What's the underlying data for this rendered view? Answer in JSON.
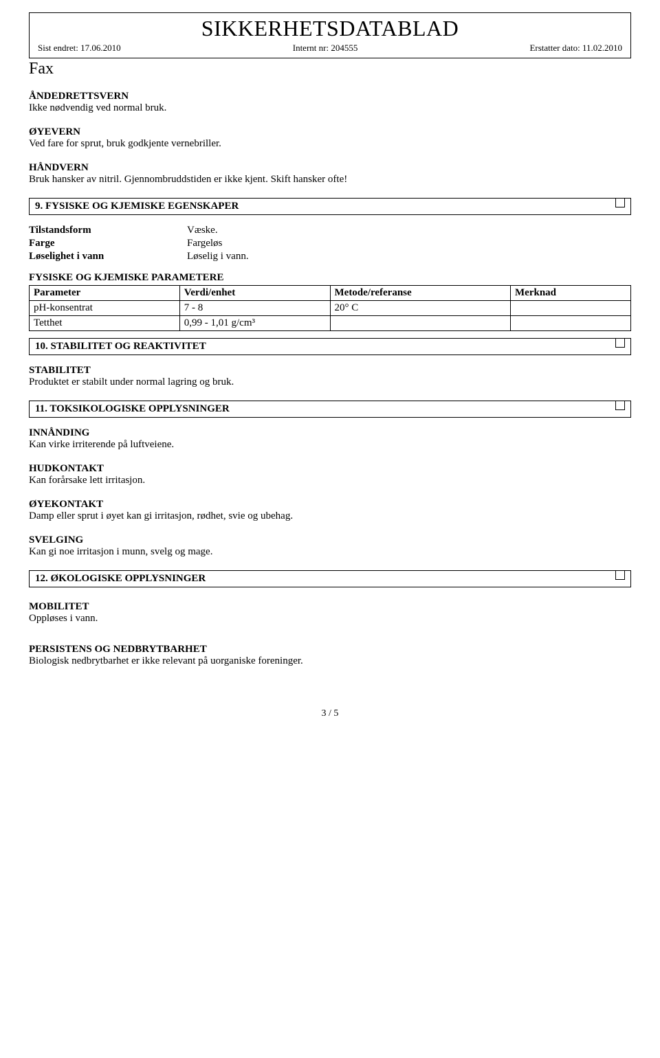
{
  "header": {
    "title": "SIKKERHETSDATABLAD",
    "left": "Sist endret: 17.06.2010",
    "center": "Internt nr: 204555",
    "right": "Erstatter dato: 11.02.2010"
  },
  "fax": "Fax",
  "blocks_top": [
    {
      "title": "ÅNDEDRETTSVERN",
      "text": "Ikke nødvendig ved normal bruk."
    },
    {
      "title": "ØYEVERN",
      "text": "Ved fare for sprut, bruk godkjente vernebriller."
    },
    {
      "title": "HÅNDVERN",
      "text": "Bruk hansker av nitril. Gjennombruddstiden er ikke kjent. Skift hansker ofte!"
    }
  ],
  "section9": {
    "heading": "9. FYSISKE OG KJEMISKE EGENSKAPER",
    "props": [
      {
        "k": "Tilstandsform",
        "v": "Væske."
      },
      {
        "k": "Farge",
        "v": "Fargeløs"
      },
      {
        "k": "Løselighet i vann",
        "v": "Løselig i vann."
      }
    ],
    "params_title": "FYSISKE OG KJEMISKE PARAMETERE",
    "columns": [
      "Parameter",
      "Verdi/enhet",
      "Metode/referanse",
      "Merknad"
    ],
    "rows": [
      [
        "pH-konsentrat",
        "7 - 8",
        "20° C",
        ""
      ],
      [
        "Tetthet",
        "0,99 - 1,01 g/cm³",
        "",
        ""
      ]
    ],
    "col_widths": [
      "25%",
      "25%",
      "30%",
      "20%"
    ]
  },
  "section10": {
    "heading": "10. STABILITET OG REAKTIVITET",
    "blocks": [
      {
        "title": "STABILITET",
        "text": "Produktet er stabilt under normal lagring og bruk."
      }
    ]
  },
  "section11": {
    "heading": "11. TOKSIKOLOGISKE OPPLYSNINGER",
    "blocks": [
      {
        "title": "INNÅNDING",
        "text": "Kan virke irriterende på luftveiene."
      },
      {
        "title": "HUDKONTAKT",
        "text": "Kan forårsake lett irritasjon."
      },
      {
        "title": "ØYEKONTAKT",
        "text": "Damp eller sprut i øyet kan gi irritasjon, rødhet, svie og ubehag."
      },
      {
        "title": "SVELGING",
        "text": "Kan gi noe irritasjon i munn, svelg og mage."
      }
    ]
  },
  "section12": {
    "heading": "12. ØKOLOGISKE OPPLYSNINGER",
    "blocks": [
      {
        "title": "MOBILITET",
        "text": "Oppløses i vann."
      },
      {
        "title": "PERSISTENS OG NEDBRYTBARHET",
        "text": "Biologisk nedbrytbarhet er ikke relevant på uorganiske foreninger."
      }
    ]
  },
  "footer": "3 / 5"
}
